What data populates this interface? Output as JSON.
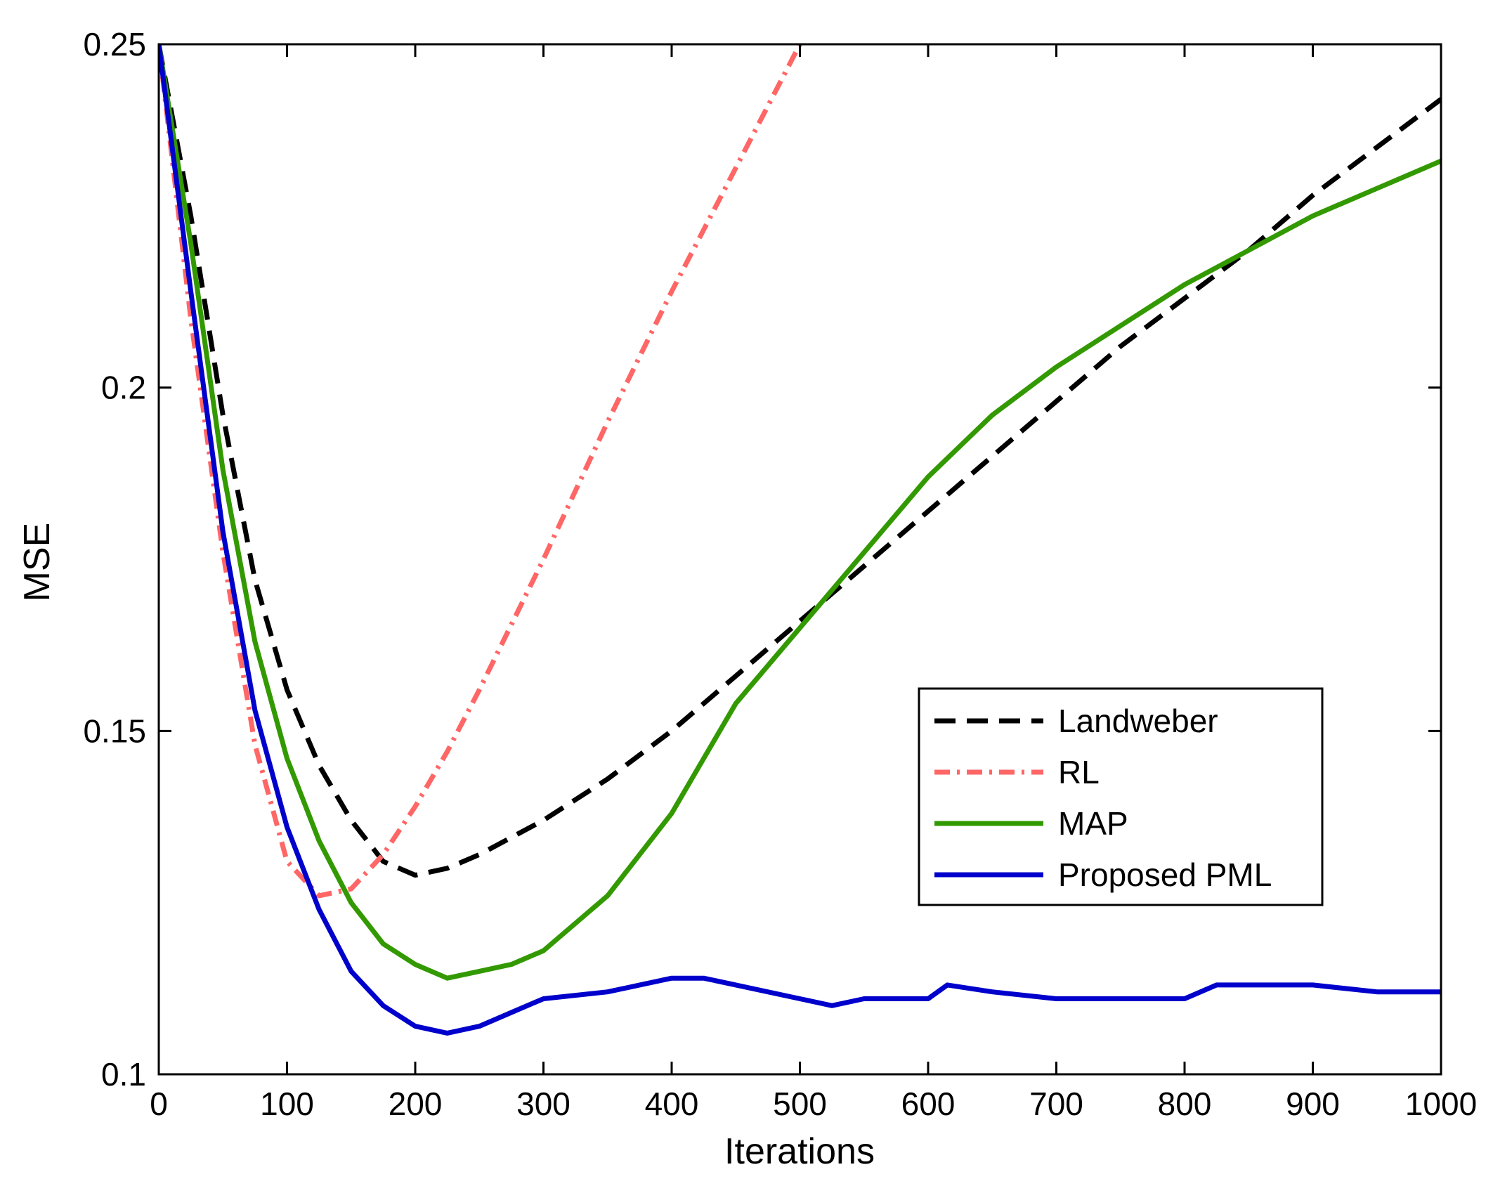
{
  "chart_data": {
    "type": "line",
    "title": "",
    "xlabel": "Iterations",
    "ylabel": "MSE",
    "xlim": [
      0,
      1000
    ],
    "ylim": [
      0.1,
      0.25
    ],
    "xticks": [
      0,
      100,
      200,
      300,
      400,
      500,
      600,
      700,
      800,
      900,
      1000
    ],
    "xtick_labels": [
      "0",
      "100",
      "200",
      "300",
      "400",
      "500",
      "600",
      "700",
      "800",
      "900",
      "1000"
    ],
    "yticks": [
      0.1,
      0.15,
      0.2,
      0.25
    ],
    "ytick_labels": [
      "0.1",
      "0.15",
      "0.2",
      "0.25"
    ],
    "grid": false,
    "legend_position": "lower-right",
    "series": [
      {
        "name": "Landweber",
        "color": "#000000",
        "style": "dashed",
        "x": [
          0,
          25,
          50,
          75,
          100,
          125,
          150,
          175,
          200,
          225,
          250,
          300,
          350,
          400,
          450,
          500,
          550,
          600,
          650,
          700,
          750,
          800,
          850,
          900,
          950,
          1000
        ],
        "y": [
          0.25,
          0.225,
          0.196,
          0.172,
          0.156,
          0.145,
          0.137,
          0.131,
          0.129,
          0.13,
          0.132,
          0.137,
          0.143,
          0.15,
          0.158,
          0.166,
          0.174,
          0.182,
          0.19,
          0.198,
          0.206,
          0.213,
          0.22,
          0.228,
          0.235,
          0.242
        ]
      },
      {
        "name": "RL",
        "color": "#ff6666",
        "style": "dashdot",
        "x": [
          0,
          25,
          50,
          75,
          100,
          125,
          150,
          175,
          200,
          225,
          250,
          300,
          350,
          400,
          450,
          500
        ],
        "y": [
          0.25,
          0.21,
          0.176,
          0.148,
          0.131,
          0.126,
          0.127,
          0.132,
          0.139,
          0.147,
          0.156,
          0.175,
          0.195,
          0.214,
          0.232,
          0.25
        ]
      },
      {
        "name": "MAP",
        "color": "#339900",
        "style": "solid",
        "x": [
          0,
          25,
          50,
          75,
          100,
          125,
          150,
          175,
          200,
          225,
          250,
          275,
          300,
          350,
          400,
          450,
          500,
          550,
          600,
          650,
          700,
          750,
          800,
          850,
          900,
          950,
          1000
        ],
        "y": [
          0.25,
          0.221,
          0.188,
          0.163,
          0.146,
          0.134,
          0.125,
          0.119,
          0.116,
          0.114,
          0.115,
          0.116,
          0.118,
          0.126,
          0.138,
          0.154,
          0.165,
          0.176,
          0.187,
          0.196,
          0.203,
          0.209,
          0.215,
          0.22,
          0.225,
          0.229,
          0.233
        ]
      },
      {
        "name": "Proposed PML",
        "color": "#0000cc",
        "style": "solid",
        "x": [
          0,
          25,
          50,
          75,
          100,
          125,
          150,
          175,
          200,
          225,
          250,
          275,
          300,
          350,
          400,
          425,
          450,
          500,
          525,
          550,
          600,
          615,
          650,
          700,
          750,
          800,
          825,
          850,
          900,
          950,
          1000
        ],
        "y": [
          0.25,
          0.214,
          0.179,
          0.153,
          0.136,
          0.124,
          0.115,
          0.11,
          0.107,
          0.106,
          0.107,
          0.109,
          0.111,
          0.112,
          0.114,
          0.114,
          0.113,
          0.111,
          0.11,
          0.111,
          0.111,
          0.113,
          0.112,
          0.111,
          0.111,
          0.111,
          0.113,
          0.113,
          0.113,
          0.112,
          0.112
        ]
      }
    ]
  }
}
